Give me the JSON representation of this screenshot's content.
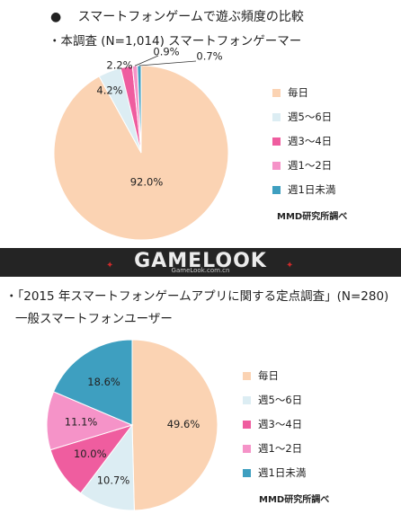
{
  "header": {
    "bullet": "●",
    "title": "スマートフォンゲームで遊ぶ頻度の比較"
  },
  "banner": {
    "logo": "GAMELOOK",
    "url": "GameLook.com.cn"
  },
  "colors": {
    "daily": "#fbd3b3",
    "5to6": "#dcedf3",
    "3to4": "#ef5d9f",
    "1to2": "#f593c8",
    "lt1": "#3e9fc0"
  },
  "chart_data": [
    {
      "type": "pie",
      "subtitle": "・本調査 (N=1,014) スマートフォンゲーマー",
      "categories": [
        "毎日",
        "週5～6日",
        "週3～4日",
        "週1～2日",
        "週1日未満"
      ],
      "values": [
        92.0,
        4.2,
        2.2,
        0.9,
        0.7
      ],
      "labels": [
        "92.0%",
        "4.2%",
        "2.2%",
        "0.9%",
        "0.7%"
      ],
      "legend": "right",
      "credit": "MMD研究所調べ"
    },
    {
      "type": "pie",
      "subtitle": "・「2015 年スマートフォンゲームアプリに関する定点調査」(N=280)",
      "subtitle2": "一般スマートフォンユーザー",
      "categories": [
        "毎日",
        "週5～6日",
        "週3～4日",
        "週1～2日",
        "週1日未満"
      ],
      "values": [
        49.6,
        10.7,
        10.0,
        11.1,
        18.6
      ],
      "labels": [
        "49.6%",
        "10.7%",
        "10.0%",
        "11.1%",
        "18.6%"
      ],
      "legend": "right",
      "credit": "MMD研究所調べ"
    }
  ]
}
